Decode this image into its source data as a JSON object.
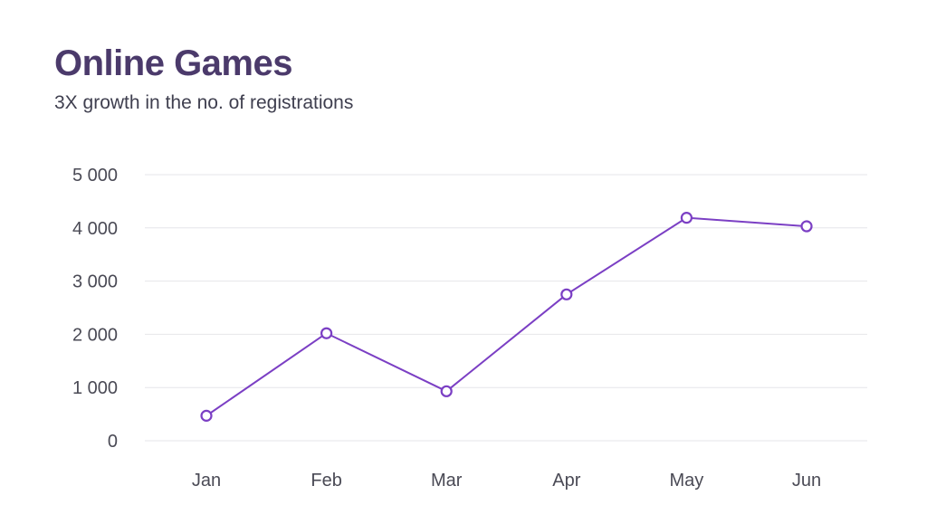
{
  "chart_data": {
    "type": "line",
    "title": "Online Games",
    "subtitle": "3X growth in the no. of registrations",
    "xlabel": "",
    "ylabel": "",
    "categories": [
      "Jan",
      "Feb",
      "Mar",
      "Apr",
      "May",
      "Jun"
    ],
    "series": [
      {
        "values": [
          470,
          2020,
          930,
          2750,
          4190,
          4030
        ]
      }
    ],
    "ylim": [
      0,
      5000
    ],
    "yticks": [
      0,
      1000,
      2000,
      3000,
      4000,
      5000
    ],
    "ytick_labels": [
      "0",
      "1 000",
      "2 000",
      "3 000",
      "4 000",
      "5 000"
    ],
    "grid": true,
    "legend": "none",
    "colors": {
      "line": "#7b3fc4",
      "title": "#4b3a6b",
      "grid": "#e6e6ea"
    }
  }
}
